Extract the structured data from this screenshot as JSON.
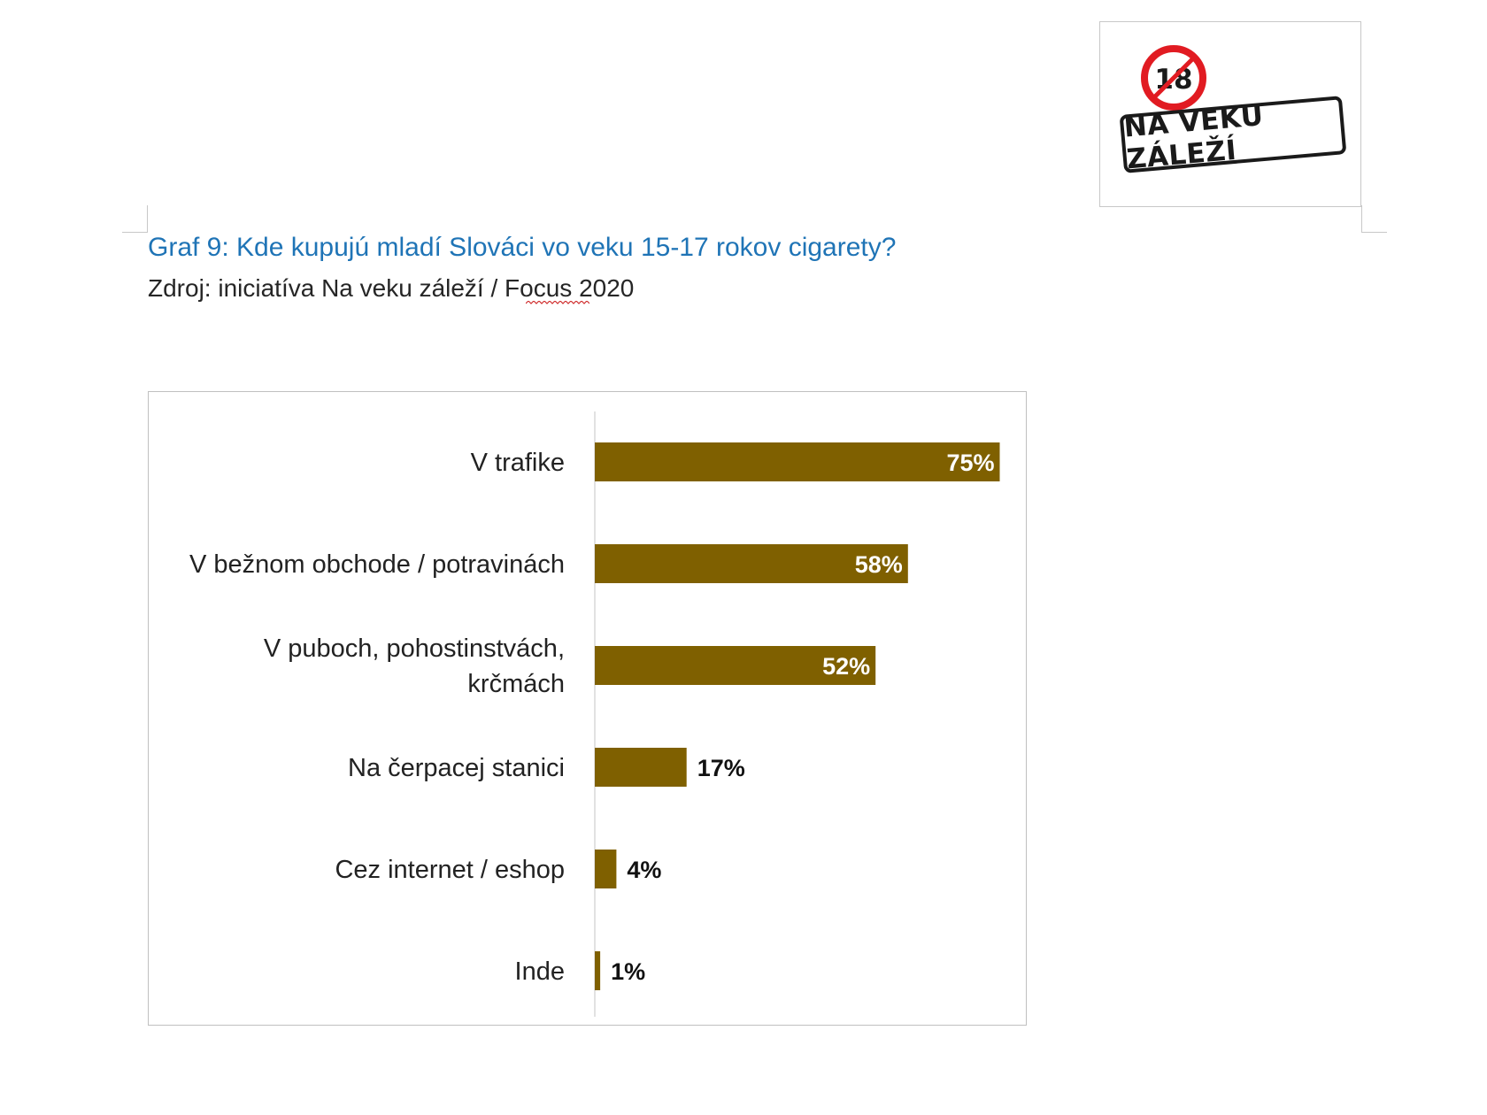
{
  "logo": {
    "badge_number": "18",
    "text": "NA VEKU ZÁLEŽÍ"
  },
  "header": {
    "title": "Graf 9: Kde kupujú mladí Slováci vo veku 15-17 rokov cigarety?",
    "source": "Zdroj: iniciatíva Na veku záleží / Focus 2020"
  },
  "colors": {
    "bar": "#7f6000",
    "title": "#1f74b6",
    "badge_ring": "#e11b22"
  },
  "chart_data": {
    "type": "bar",
    "orientation": "horizontal",
    "categories": [
      [
        "V trafike"
      ],
      [
        "V bežnom obchode / potravinách"
      ],
      [
        "V puboch, pohostinstvách,",
        "krčmách"
      ],
      [
        "Na čerpacej stanici"
      ],
      [
        "Cez internet / eshop"
      ],
      [
        "Inde"
      ]
    ],
    "values": [
      75,
      58,
      52,
      17,
      4,
      1
    ],
    "value_labels": [
      "75%",
      "58%",
      "52%",
      "17%",
      "4%",
      "1%"
    ],
    "unit": "%",
    "xlim": [
      0,
      80
    ],
    "grid": false,
    "legend": "none"
  }
}
